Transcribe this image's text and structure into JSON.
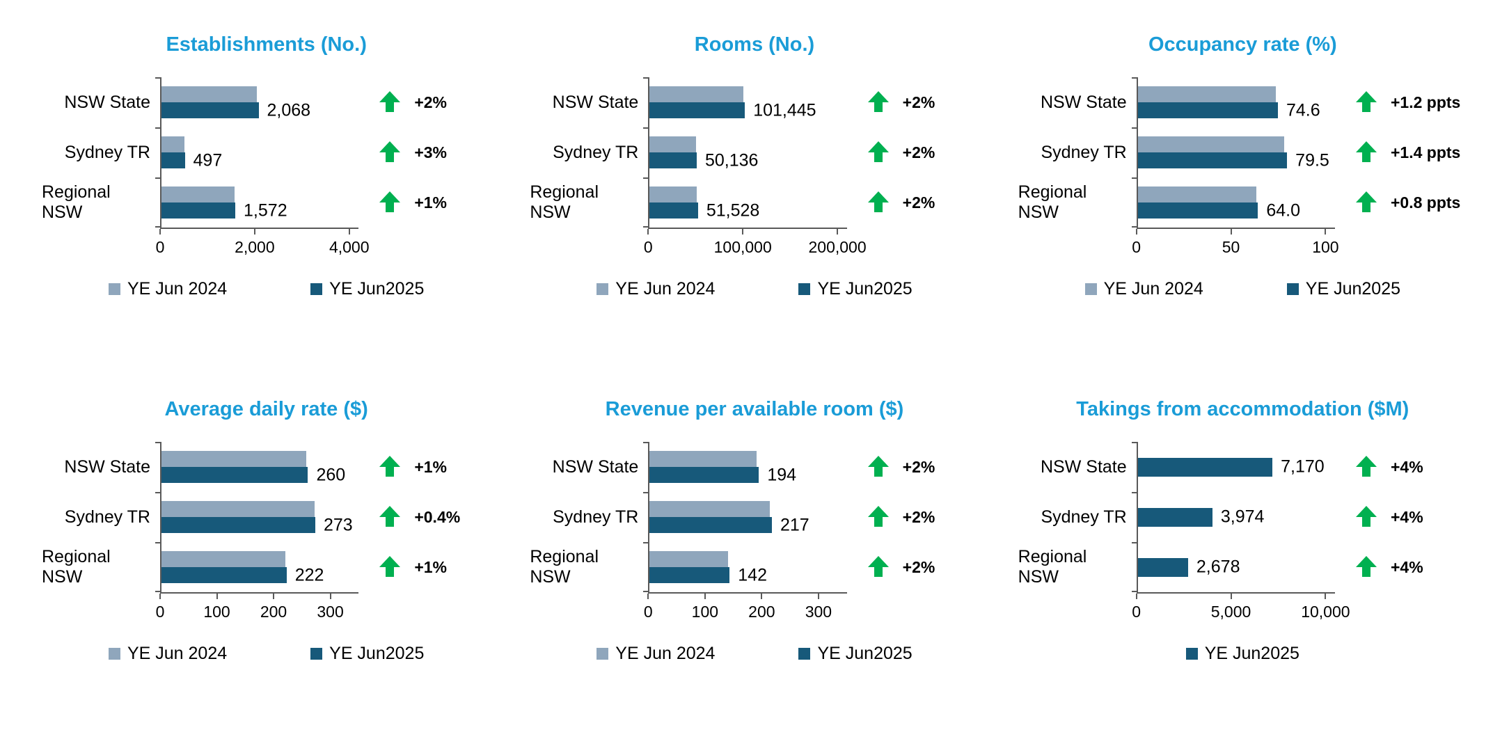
{
  "colors": {
    "title": "#1A9CD7",
    "series_2024": "#8FA6BC",
    "series_2025": "#17597A",
    "positive_green": "#00B050",
    "axis": "#595959"
  },
  "chart_data": [
    {
      "type": "bar",
      "orientation": "horizontal",
      "title": "Establishments (No.)",
      "categories": [
        "NSW State",
        "Sydney TR",
        "Regional NSW"
      ],
      "series": [
        {
          "name": "YE Jun 2024",
          "values": [
            2028,
            483,
            1556
          ]
        },
        {
          "name": "YE Jun2025",
          "values": [
            2068,
            497,
            1572
          ]
        }
      ],
      "value_labels": [
        "2,068",
        "497",
        "1,572"
      ],
      "changes": [
        "+2%",
        "+3%",
        "+1%"
      ],
      "x_ticks": [
        {
          "value": 0,
          "label": "0"
        },
        {
          "value": 2000,
          "label": "2,000"
        },
        {
          "value": 4000,
          "label": "4,000"
        }
      ],
      "x_max": 4200,
      "legend": [
        "YE Jun 2024",
        "YE Jun2025"
      ]
    },
    {
      "type": "bar",
      "orientation": "horizontal",
      "title": "Rooms (No.)",
      "categories": [
        "NSW State",
        "Sydney TR",
        "Regional NSW"
      ],
      "series": [
        {
          "name": "YE Jun 2024",
          "values": [
            99500,
            49150,
            50500
          ]
        },
        {
          "name": "YE Jun2025",
          "values": [
            101445,
            50136,
            51528
          ]
        }
      ],
      "value_labels": [
        "101,445",
        "50,136",
        "51,528"
      ],
      "changes": [
        "+2%",
        "+2%",
        "+2%"
      ],
      "x_ticks": [
        {
          "value": 0,
          "label": "0"
        },
        {
          "value": 100000,
          "label": "100,000"
        },
        {
          "value": 200000,
          "label": "200,000"
        }
      ],
      "x_max": 210000,
      "legend": [
        "YE Jun 2024",
        "YE Jun2025"
      ]
    },
    {
      "type": "bar",
      "orientation": "horizontal",
      "title": "Occupancy rate (%)",
      "categories": [
        "NSW State",
        "Sydney TR",
        "Regional NSW"
      ],
      "series": [
        {
          "name": "YE Jun 2024",
          "values": [
            73.4,
            78.1,
            63.2
          ]
        },
        {
          "name": "YE Jun2025",
          "values": [
            74.6,
            79.5,
            64.0
          ]
        }
      ],
      "value_labels": [
        "74.6",
        "79.5",
        "64.0"
      ],
      "changes": [
        "+1.2 ppts",
        "+1.4 ppts",
        "+0.8 ppts"
      ],
      "x_ticks": [
        {
          "value": 0,
          "label": "0"
        },
        {
          "value": 50,
          "label": "50"
        },
        {
          "value": 100,
          "label": "100"
        }
      ],
      "x_max": 105,
      "legend": [
        "YE Jun 2024",
        "YE Jun2025"
      ]
    },
    {
      "type": "bar",
      "orientation": "horizontal",
      "title": "Average daily rate ($)",
      "categories": [
        "NSW State",
        "Sydney TR",
        "Regional NSW"
      ],
      "series": [
        {
          "name": "YE Jun 2024",
          "values": [
            257,
            272,
            220
          ]
        },
        {
          "name": "YE Jun2025",
          "values": [
            260,
            273,
            222
          ]
        }
      ],
      "value_labels": [
        "260",
        "273",
        "222"
      ],
      "changes": [
        "+1%",
        "+0.4%",
        "+1%"
      ],
      "x_ticks": [
        {
          "value": 0,
          "label": "0"
        },
        {
          "value": 100,
          "label": "100"
        },
        {
          "value": 200,
          "label": "200"
        },
        {
          "value": 300,
          "label": "300"
        }
      ],
      "x_max": 350,
      "legend": [
        "YE Jun 2024",
        "YE Jun2025"
      ]
    },
    {
      "type": "bar",
      "orientation": "horizontal",
      "title": "Revenue per available room ($)",
      "categories": [
        "NSW State",
        "Sydney TR",
        "Regional NSW"
      ],
      "series": [
        {
          "name": "YE Jun 2024",
          "values": [
            190,
            213,
            139
          ]
        },
        {
          "name": "YE Jun2025",
          "values": [
            194,
            217,
            142
          ]
        }
      ],
      "value_labels": [
        "194",
        "217",
        "142"
      ],
      "changes": [
        "+2%",
        "+2%",
        "+2%"
      ],
      "x_ticks": [
        {
          "value": 0,
          "label": "0"
        },
        {
          "value": 100,
          "label": "100"
        },
        {
          "value": 200,
          "label": "200"
        },
        {
          "value": 300,
          "label": "300"
        }
      ],
      "x_max": 350,
      "legend": [
        "YE Jun 2024",
        "YE Jun2025"
      ]
    },
    {
      "type": "bar",
      "orientation": "horizontal",
      "title": "Takings from accommodation ($M)",
      "categories": [
        "NSW State",
        "Sydney TR",
        "Regional NSW"
      ],
      "series": [
        {
          "name": "YE Jun2025",
          "values": [
            7170,
            3974,
            2678
          ]
        }
      ],
      "value_labels": [
        "7,170",
        "3,974",
        "2,678"
      ],
      "changes": [
        "+4%",
        "+4%",
        "+4%"
      ],
      "x_ticks": [
        {
          "value": 0,
          "label": "0"
        },
        {
          "value": 5000,
          "label": "5,000"
        },
        {
          "value": 10000,
          "label": "10,000"
        }
      ],
      "x_max": 10500,
      "legend": [
        "YE Jun2025"
      ]
    }
  ]
}
